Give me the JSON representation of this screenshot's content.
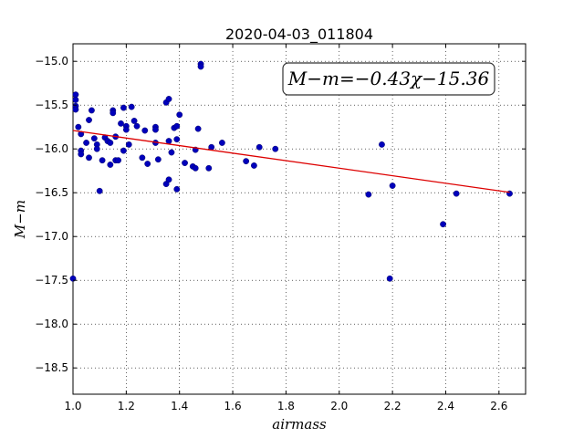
{
  "chart_data": {
    "type": "scatter",
    "title": "2020-04-03_011804",
    "xlabel": "airmass",
    "ylabel": "M−m",
    "xlim": [
      1.0,
      2.7
    ],
    "ylim": [
      -18.8,
      -14.8
    ],
    "x_ticks": [
      1.0,
      1.2,
      1.4,
      1.6,
      1.8,
      2.0,
      2.2,
      2.4,
      2.6
    ],
    "x_tick_labels": [
      "1.0",
      "1.2",
      "1.4",
      "1.6",
      "1.8",
      "2.0",
      "2.2",
      "2.4",
      "2.6"
    ],
    "y_ticks": [
      -15.0,
      -15.5,
      -16.0,
      -16.5,
      -17.0,
      -17.5,
      -18.0,
      -18.5
    ],
    "y_tick_labels": [
      "−15.0",
      "−15.5",
      "−16.0",
      "−16.5",
      "−17.0",
      "−17.5",
      "−18.0",
      "−18.5"
    ],
    "grid": true,
    "point_color": "#0000bb",
    "fit_color": "#dd0000",
    "annotation": "M−m=−0.43χ−15.36",
    "fit": {
      "slope": -0.43,
      "intercept": -15.36,
      "x_range": [
        1.0,
        2.64
      ]
    },
    "points": [
      [
        1.0,
        -17.48
      ],
      [
        1.01,
        -15.38
      ],
      [
        1.01,
        -15.44
      ],
      [
        1.01,
        -15.51
      ],
      [
        1.01,
        -15.55
      ],
      [
        1.02,
        -15.75
      ],
      [
        1.03,
        -15.83
      ],
      [
        1.03,
        -16.02
      ],
      [
        1.03,
        -16.06
      ],
      [
        1.05,
        -15.93
      ],
      [
        1.06,
        -16.1
      ],
      [
        1.06,
        -15.67
      ],
      [
        1.07,
        -15.56
      ],
      [
        1.08,
        -15.88
      ],
      [
        1.09,
        -15.95
      ],
      [
        1.09,
        -16.0
      ],
      [
        1.1,
        -16.48
      ],
      [
        1.11,
        -16.13
      ],
      [
        1.12,
        -15.87
      ],
      [
        1.13,
        -15.91
      ],
      [
        1.14,
        -15.93
      ],
      [
        1.14,
        -16.18
      ],
      [
        1.15,
        -15.56
      ],
      [
        1.15,
        -15.59
      ],
      [
        1.16,
        -15.86
      ],
      [
        1.16,
        -16.13
      ],
      [
        1.17,
        -16.13
      ],
      [
        1.18,
        -15.71
      ],
      [
        1.19,
        -16.02
      ],
      [
        1.19,
        -15.53
      ],
      [
        1.2,
        -15.74
      ],
      [
        1.2,
        -15.78
      ],
      [
        1.21,
        -15.95
      ],
      [
        1.22,
        -15.52
      ],
      [
        1.23,
        -15.68
      ],
      [
        1.24,
        -15.74
      ],
      [
        1.26,
        -16.1
      ],
      [
        1.27,
        -15.79
      ],
      [
        1.28,
        -16.17
      ],
      [
        1.31,
        -15.75
      ],
      [
        1.31,
        -15.78
      ],
      [
        1.31,
        -15.93
      ],
      [
        1.32,
        -16.12
      ],
      [
        1.35,
        -16.4
      ],
      [
        1.35,
        -15.47
      ],
      [
        1.36,
        -15.43
      ],
      [
        1.36,
        -16.35
      ],
      [
        1.36,
        -15.91
      ],
      [
        1.37,
        -16.04
      ],
      [
        1.38,
        -15.76
      ],
      [
        1.39,
        -15.74
      ],
      [
        1.39,
        -15.89
      ],
      [
        1.39,
        -16.46
      ],
      [
        1.4,
        -15.61
      ],
      [
        1.42,
        -16.16
      ],
      [
        1.45,
        -16.2
      ],
      [
        1.46,
        -16.22
      ],
      [
        1.46,
        -16.01
      ],
      [
        1.47,
        -15.77
      ],
      [
        1.48,
        -15.03
      ],
      [
        1.48,
        -15.06
      ],
      [
        1.51,
        -16.22
      ],
      [
        1.52,
        -15.98
      ],
      [
        1.56,
        -15.93
      ],
      [
        1.65,
        -16.14
      ],
      [
        1.68,
        -16.19
      ],
      [
        1.7,
        -15.98
      ],
      [
        1.76,
        -16.0
      ],
      [
        2.11,
        -16.52
      ],
      [
        2.16,
        -15.95
      ],
      [
        2.19,
        -17.48
      ],
      [
        2.2,
        -16.42
      ],
      [
        2.39,
        -16.86
      ],
      [
        2.44,
        -16.51
      ],
      [
        2.64,
        -16.51
      ]
    ]
  }
}
